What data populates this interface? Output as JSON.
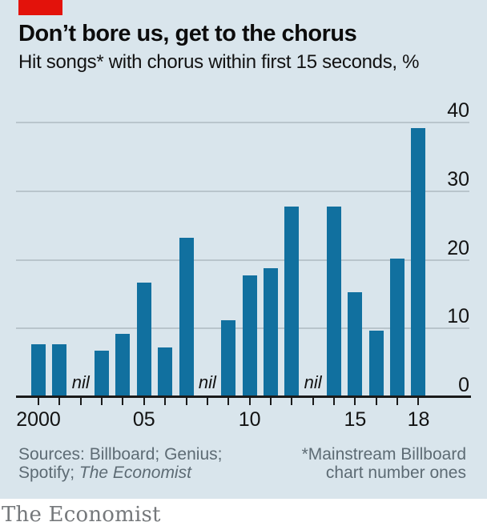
{
  "brand": {
    "publication": "The Economist",
    "accent_red": "#e3120b"
  },
  "chart_data": {
    "type": "bar",
    "title": "Don’t bore us, get to the chorus",
    "subtitle": "Hit songs* with chorus within first 15 seconds, %",
    "unit": "%",
    "categories": [
      2000,
      2001,
      2002,
      2003,
      2004,
      2005,
      2006,
      2007,
      2008,
      2009,
      2010,
      2011,
      2012,
      2013,
      2014,
      2015,
      2016,
      2017,
      2018
    ],
    "values": [
      7.5,
      7.5,
      null,
      6.5,
      9,
      16.5,
      7,
      23,
      null,
      11,
      17.5,
      18.5,
      27.5,
      null,
      27.5,
      15,
      9.5,
      20,
      39
    ],
    "nil_years": [
      2002,
      2008,
      2013
    ],
    "nil_label": "nil",
    "x_ticks": [
      {
        "label": "2000",
        "year": 2000
      },
      {
        "label": "05",
        "year": 2005
      },
      {
        "label": "10",
        "year": 2010
      },
      {
        "label": "15",
        "year": 2015
      },
      {
        "label": "18",
        "year": 2018
      }
    ],
    "y_ticks": [
      0,
      10,
      20,
      30,
      40
    ],
    "ylim": [
      0,
      40
    ],
    "xlabel": "",
    "ylabel": "%",
    "grid": true,
    "legend": "none",
    "bar_color": "#11709f"
  },
  "footer": {
    "sources_line1": "Sources: Billboard; Genius;",
    "sources_line2_prefix": "Spotify; ",
    "sources_line2_italic": "The Economist",
    "footnote_line1": "*Mainstream Billboard",
    "footnote_line2": "chart number ones"
  }
}
